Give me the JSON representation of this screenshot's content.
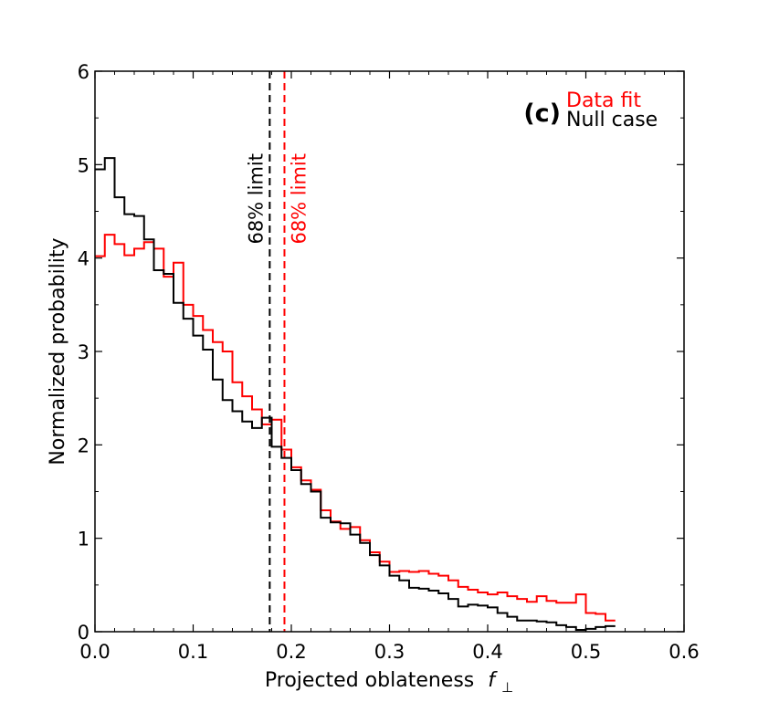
{
  "chart_data": {
    "type": "step-histogram",
    "panel_label": "(c)",
    "xlabel": "Projected oblateness",
    "xlabel_symbol": "f",
    "xlabel_subscript": "⊥",
    "ylabel": "Normalized probability",
    "xlim": [
      0.0,
      0.6
    ],
    "ylim": [
      0,
      6
    ],
    "x_ticks": [
      0.0,
      0.1,
      0.2,
      0.3,
      0.4,
      0.5,
      0.6
    ],
    "x_tick_labels": [
      "0.0",
      "0.1",
      "0.2",
      "0.3",
      "0.4",
      "0.5",
      "0.6"
    ],
    "y_ticks": [
      0,
      1,
      2,
      3,
      4,
      5,
      6
    ],
    "y_tick_labels": [
      "0",
      "1",
      "2",
      "3",
      "4",
      "5",
      "6"
    ],
    "bin_width": 0.01,
    "series": [
      {
        "name": "Data fit",
        "color": "#ff0000",
        "values": [
          4.02,
          4.25,
          4.15,
          4.03,
          4.1,
          4.17,
          4.1,
          3.8,
          3.95,
          3.5,
          3.38,
          3.23,
          3.1,
          3.0,
          2.67,
          2.52,
          2.38,
          2.22,
          2.27,
          1.95,
          1.76,
          1.62,
          1.52,
          1.3,
          1.18,
          1.1,
          1.12,
          0.98,
          0.85,
          0.75,
          0.64,
          0.65,
          0.64,
          0.65,
          0.62,
          0.6,
          0.55,
          0.48,
          0.45,
          0.42,
          0.4,
          0.42,
          0.38,
          0.35,
          0.32,
          0.38,
          0.33,
          0.31,
          0.31,
          0.4,
          0.2,
          0.19,
          0.12
        ]
      },
      {
        "name": "Null case",
        "color": "#000000",
        "values": [
          4.95,
          5.07,
          4.65,
          4.47,
          4.45,
          4.2,
          3.87,
          3.83,
          3.52,
          3.35,
          3.17,
          3.02,
          2.7,
          2.48,
          2.36,
          2.25,
          2.18,
          2.29,
          1.98,
          1.86,
          1.73,
          1.58,
          1.5,
          1.22,
          1.17,
          1.16,
          1.04,
          0.95,
          0.82,
          0.71,
          0.6,
          0.55,
          0.47,
          0.46,
          0.44,
          0.41,
          0.35,
          0.27,
          0.29,
          0.28,
          0.26,
          0.2,
          0.16,
          0.12,
          0.12,
          0.11,
          0.1,
          0.07,
          0.05,
          0.02,
          0.03,
          0.05,
          0.06
        ]
      }
    ],
    "vertical_lines": [
      {
        "name": "Null case",
        "x": 0.178,
        "color": "#000000",
        "style": "dashed",
        "label": "68% limit"
      },
      {
        "name": "Data fit",
        "x": 0.193,
        "color": "#ff0000",
        "style": "dashed",
        "label": "68% limit"
      }
    ],
    "legend": {
      "position": "top-right",
      "entries": [
        {
          "label": "Data fit",
          "color": "#ff0000"
        },
        {
          "label": "Null case",
          "color": "#000000"
        }
      ]
    }
  }
}
